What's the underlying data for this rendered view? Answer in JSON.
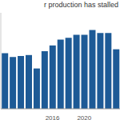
{
  "chart_data": {
    "type": "bar",
    "title": "r production has stalled",
    "categories": [
      null,
      null,
      null,
      null,
      null,
      null,
      "2016",
      null,
      null,
      null,
      "2020",
      null,
      null,
      null,
      null
    ],
    "values": [
      58,
      54,
      55,
      56,
      42,
      60,
      66,
      72,
      74,
      77,
      77,
      82,
      79,
      79,
      62
    ],
    "color": "#1d5a96",
    "ylim": [
      0,
      100
    ],
    "grid": false,
    "tick_labels": "x"
  }
}
